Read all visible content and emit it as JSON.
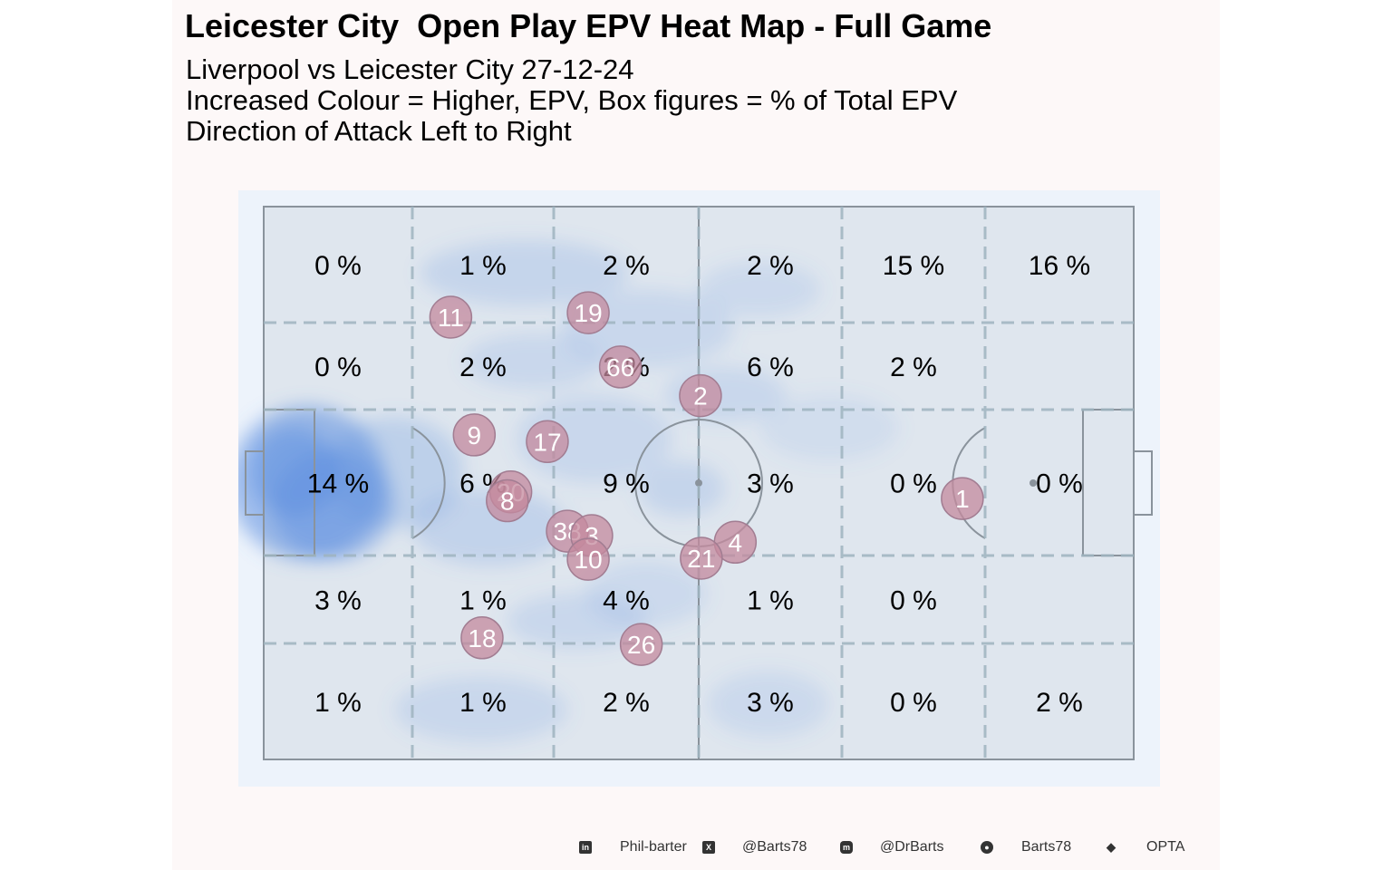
{
  "header": {
    "title": "Leicester City  Open Play EPV Heat Map - Full Game",
    "subtitle_1": "Liverpool vs Leicester City 27-12-24",
    "subtitle_2": "Increased Colour = Higher, EPV, Box figures = % of Total EPV",
    "subtitle_3": "Direction of Attack Left to Right"
  },
  "colors": {
    "panel_background": "#fdf8f8",
    "pitch_background": "#edf3fb",
    "pitch_fill": "#dfe6ee",
    "lines": "#8a939c",
    "zone_lines": "#9fb4c0",
    "heat": "#5b8ee0",
    "player_marker": "#c48a9d",
    "player_text": "#ffffff"
  },
  "chart_data": {
    "type": "heatmap",
    "x_range": [
      0,
      100
    ],
    "y_range": [
      0,
      100
    ],
    "grid_columns": 6,
    "grid_rows": 5,
    "zone_percentages": [
      [
        "0 %",
        "1 %",
        "2 %",
        "2 %",
        "15 %",
        "16 %"
      ],
      [
        "0 %",
        "2 %",
        "2 %",
        "6 %",
        "2 %",
        ""
      ],
      [
        "14 %",
        "6 %",
        "9 %",
        "3 %",
        "0 %",
        "0 %"
      ],
      [
        "3 %",
        "1 %",
        "4 %",
        "1 %",
        "0 %",
        ""
      ],
      [
        "1 %",
        "1 %",
        "2 %",
        "3 %",
        "0 %",
        "2 %"
      ]
    ],
    "players": [
      {
        "number": "11",
        "x": 21.5,
        "y": 80.0
      },
      {
        "number": "19",
        "x": 37.3,
        "y": 80.8
      },
      {
        "number": "66",
        "x": 41.0,
        "y": 71.0
      },
      {
        "number": "2",
        "x": 50.2,
        "y": 65.8
      },
      {
        "number": "9",
        "x": 24.2,
        "y": 58.7
      },
      {
        "number": "17",
        "x": 32.6,
        "y": 57.5
      },
      {
        "number": "20",
        "x": 28.4,
        "y": 48.4
      },
      {
        "number": "8",
        "x": 28.0,
        "y": 46.8
      },
      {
        "number": "38",
        "x": 34.9,
        "y": 41.3
      },
      {
        "number": "3",
        "x": 37.7,
        "y": 40.5
      },
      {
        "number": "10",
        "x": 37.3,
        "y": 36.2
      },
      {
        "number": "4",
        "x": 54.2,
        "y": 39.3
      },
      {
        "number": "21",
        "x": 50.3,
        "y": 36.4
      },
      {
        "number": "1",
        "x": 80.3,
        "y": 47.2
      },
      {
        "number": "18",
        "x": 25.1,
        "y": 22.0
      },
      {
        "number": "26",
        "x": 43.4,
        "y": 20.8
      }
    ],
    "heat_blobs": [
      {
        "x": 5,
        "y": 50,
        "rx": 9,
        "ry": 14,
        "intensity": 1.0
      },
      {
        "x": 8,
        "y": 46,
        "rx": 7,
        "ry": 10,
        "intensity": 0.8
      },
      {
        "x": 3.5,
        "y": 52,
        "rx": 5,
        "ry": 8,
        "intensity": 0.9
      },
      {
        "x": 15,
        "y": 52,
        "rx": 8,
        "ry": 10,
        "intensity": 0.45
      },
      {
        "x": 26,
        "y": 42,
        "rx": 9,
        "ry": 7,
        "intensity": 0.4
      },
      {
        "x": 30,
        "y": 88,
        "rx": 12,
        "ry": 6,
        "intensity": 0.35
      },
      {
        "x": 31,
        "y": 72,
        "rx": 8,
        "ry": 5,
        "intensity": 0.3
      },
      {
        "x": 44,
        "y": 78,
        "rx": 10,
        "ry": 7,
        "intensity": 0.3
      },
      {
        "x": 38,
        "y": 58,
        "rx": 9,
        "ry": 8,
        "intensity": 0.3
      },
      {
        "x": 48,
        "y": 49,
        "rx": 5,
        "ry": 5,
        "intensity": 0.35
      },
      {
        "x": 53,
        "y": 66,
        "rx": 7,
        "ry": 5,
        "intensity": 0.3
      },
      {
        "x": 57,
        "y": 85,
        "rx": 7,
        "ry": 5,
        "intensity": 0.25
      },
      {
        "x": 36,
        "y": 25,
        "rx": 8,
        "ry": 5,
        "intensity": 0.3
      },
      {
        "x": 25,
        "y": 9,
        "rx": 10,
        "ry": 6,
        "intensity": 0.3
      },
      {
        "x": 58,
        "y": 10,
        "rx": 7,
        "ry": 6,
        "intensity": 0.25
      },
      {
        "x": 65,
        "y": 60,
        "rx": 8,
        "ry": 6,
        "intensity": 0.2
      },
      {
        "x": 44,
        "y": 30,
        "rx": 7,
        "ry": 6,
        "intensity": 0.25
      }
    ]
  },
  "footer": {
    "linkedin_icon": "linkedin-icon",
    "linkedin": "Phil-barter",
    "x_icon": "x-icon",
    "x": "@Barts78",
    "mastodon_icon": "mastodon-icon",
    "mastodon": "@DrBarts",
    "github_icon": "github-icon",
    "github": "Barts78",
    "dropbox_icon": "dropbox-icon",
    "data_source": "OPTA"
  }
}
